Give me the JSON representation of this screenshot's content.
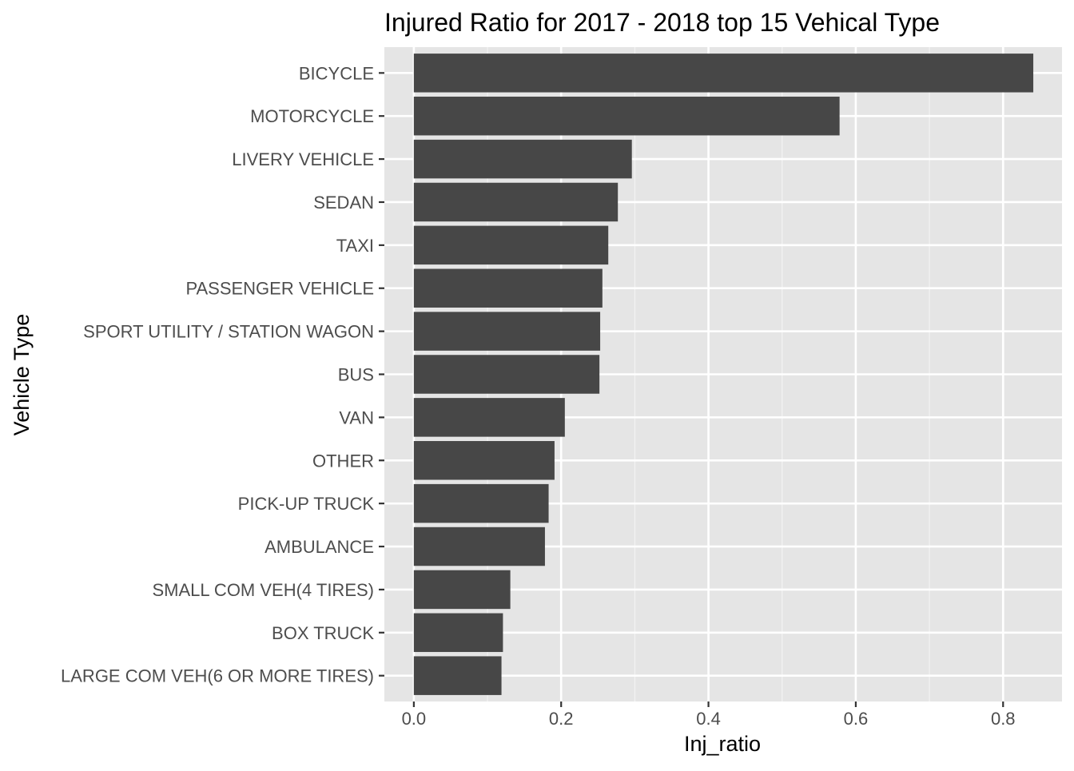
{
  "chart_data": {
    "type": "bar",
    "orientation": "horizontal",
    "title": "Injured Ratio for 2017 - 2018 top 15 Vehical Type",
    "xlabel": "Inj_ratio",
    "ylabel": "Vehicle Type",
    "xlim": [
      -0.04,
      0.88
    ],
    "x_ticks": [
      "0.0",
      "0.2",
      "0.4",
      "0.6",
      "0.8"
    ],
    "grid": true,
    "legend": "none",
    "bar_color": "#474747",
    "panel_color": "#e5e5e5",
    "categories": [
      "BICYCLE",
      "MOTORCYCLE",
      "LIVERY VEHICLE",
      "SEDAN",
      "TAXI",
      "PASSENGER VEHICLE",
      "SPORT UTILITY / STATION WAGON",
      "BUS",
      "VAN",
      "OTHER",
      "PICK-UP TRUCK",
      "AMBULANCE",
      "SMALL COM VEH(4 TIRES) ",
      "BOX TRUCK",
      "LARGE COM VEH(6 OR MORE TIRES)"
    ],
    "values": [
      0.841,
      0.578,
      0.296,
      0.277,
      0.264,
      0.256,
      0.253,
      0.252,
      0.205,
      0.191,
      0.183,
      0.178,
      0.131,
      0.121,
      0.119
    ]
  }
}
